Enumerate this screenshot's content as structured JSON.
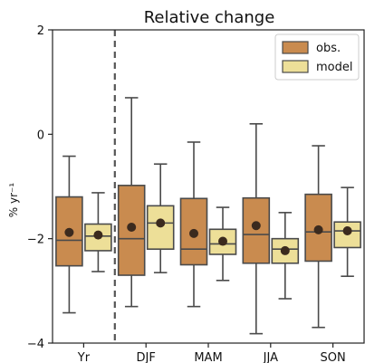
{
  "chart_data": {
    "type": "box",
    "title": "Relative change",
    "xlabel": "",
    "ylabel": "% yr⁻¹",
    "ylim": [
      -4,
      2
    ],
    "yticks": [
      -4,
      -2,
      0,
      2
    ],
    "ytick_labels": [
      "−4",
      "−2",
      "0",
      "2"
    ],
    "grid": false,
    "legend_position": "top-right",
    "categories": [
      "Yr",
      "DJF",
      "MAM",
      "JJA",
      "SON"
    ],
    "separator_after": "Yr",
    "series": [
      {
        "name": "obs.",
        "color": "#c98b4f",
        "boxes": [
          {
            "category": "Yr",
            "whislo": -3.42,
            "q1": -2.52,
            "median": -2.03,
            "q3": -1.2,
            "whishi": -0.42,
            "mean": -1.88
          },
          {
            "category": "DJF",
            "whislo": -3.3,
            "q1": -2.7,
            "median": -2.0,
            "q3": -0.98,
            "whishi": 0.7,
            "mean": -1.78
          },
          {
            "category": "MAM",
            "whislo": -3.3,
            "q1": -2.5,
            "median": -2.2,
            "q3": -1.23,
            "whishi": -0.15,
            "mean": -1.9
          },
          {
            "category": "JJA",
            "whislo": -3.82,
            "q1": -2.47,
            "median": -1.92,
            "q3": -1.22,
            "whishi": 0.2,
            "mean": -1.75
          },
          {
            "category": "SON",
            "whislo": -3.7,
            "q1": -2.43,
            "median": -1.87,
            "q3": -1.15,
            "whishi": -0.22,
            "mean": -1.83
          }
        ]
      },
      {
        "name": "model",
        "color": "#eddf98",
        "boxes": [
          {
            "category": "Yr",
            "whislo": -2.63,
            "q1": -2.23,
            "median": -1.95,
            "q3": -1.72,
            "whishi": -1.12,
            "mean": -1.93
          },
          {
            "category": "DJF",
            "whislo": -2.65,
            "q1": -2.2,
            "median": -1.7,
            "q3": -1.37,
            "whishi": -0.57,
            "mean": -1.7
          },
          {
            "category": "MAM",
            "whislo": -2.8,
            "q1": -2.3,
            "median": -2.1,
            "q3": -1.82,
            "whishi": -1.4,
            "mean": -2.05
          },
          {
            "category": "JJA",
            "whislo": -3.15,
            "q1": -2.47,
            "median": -2.2,
            "q3": -2.0,
            "whishi": -1.5,
            "mean": -2.23
          },
          {
            "category": "SON",
            "whislo": -2.72,
            "q1": -2.17,
            "median": -1.85,
            "q3": -1.68,
            "whishi": -1.02,
            "mean": -1.85
          }
        ]
      }
    ]
  }
}
